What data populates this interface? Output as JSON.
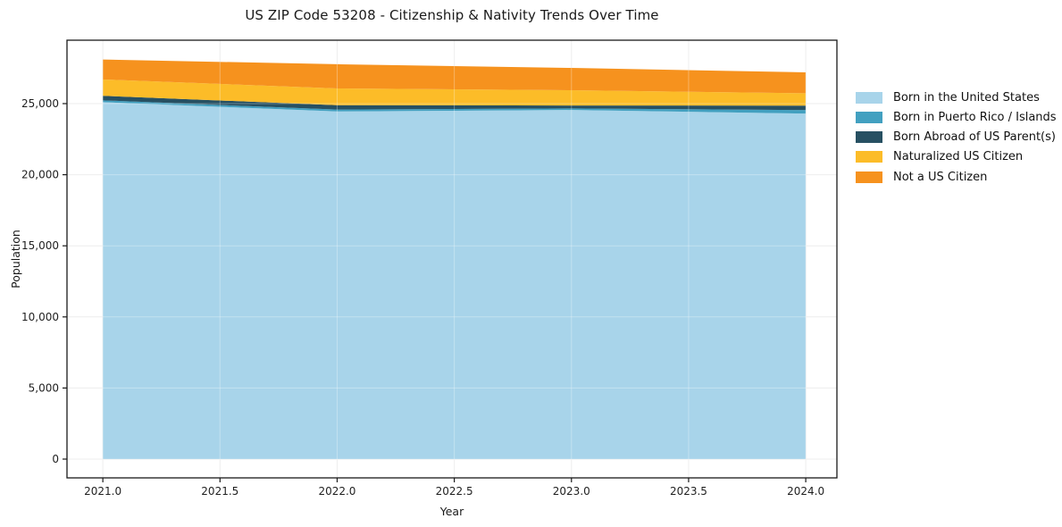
{
  "chart_data": {
    "type": "area",
    "stacked": true,
    "title": "US ZIP Code 53208 - Citizenship & Nativity Trends Over Time",
    "xlabel": "Year",
    "ylabel": "Population",
    "x": [
      2021,
      2022,
      2023,
      2024
    ],
    "series": [
      {
        "name": "Born in the United States",
        "color": "#A8D4EA",
        "values": [
          25100,
          24450,
          24550,
          24300
        ]
      },
      {
        "name": "Born in Puerto Rico / Islands",
        "color": "#42A0C0",
        "values": [
          130,
          130,
          110,
          250
        ]
      },
      {
        "name": "Born Abroad of US Parent(s)",
        "color": "#275062",
        "values": [
          320,
          310,
          210,
          310
        ]
      },
      {
        "name": "Naturalized US Citizen",
        "color": "#FCBC28",
        "values": [
          1150,
          1180,
          1070,
          870
        ]
      },
      {
        "name": "Not a US Citizen",
        "color": "#F6921E",
        "values": [
          1400,
          1700,
          1570,
          1470
        ]
      }
    ],
    "x_ticks": [
      {
        "v": 2021.0,
        "label": "2021.0"
      },
      {
        "v": 2021.5,
        "label": "2021.5"
      },
      {
        "v": 2022.0,
        "label": "2022.0"
      },
      {
        "v": 2022.5,
        "label": "2022.5"
      },
      {
        "v": 2023.0,
        "label": "2023.0"
      },
      {
        "v": 2023.5,
        "label": "2023.5"
      },
      {
        "v": 2024.0,
        "label": "2024.0"
      }
    ],
    "y_ticks": [
      {
        "v": 0,
        "label": "0"
      },
      {
        "v": 5000,
        "label": "5,000"
      },
      {
        "v": 10000,
        "label": "10,000"
      },
      {
        "v": 15000,
        "label": "15,000"
      },
      {
        "v": 20000,
        "label": "20,000"
      },
      {
        "v": 25000,
        "label": "25,000"
      }
    ],
    "xlim": [
      2020.847,
      2024.133
    ],
    "ylim": [
      -1320,
      29460
    ],
    "grid": true,
    "grid_color": "#e7e7e7",
    "spine_color": "#1a1a1a",
    "tick_text_color": "#1f1f1f",
    "legend_position": "right"
  }
}
